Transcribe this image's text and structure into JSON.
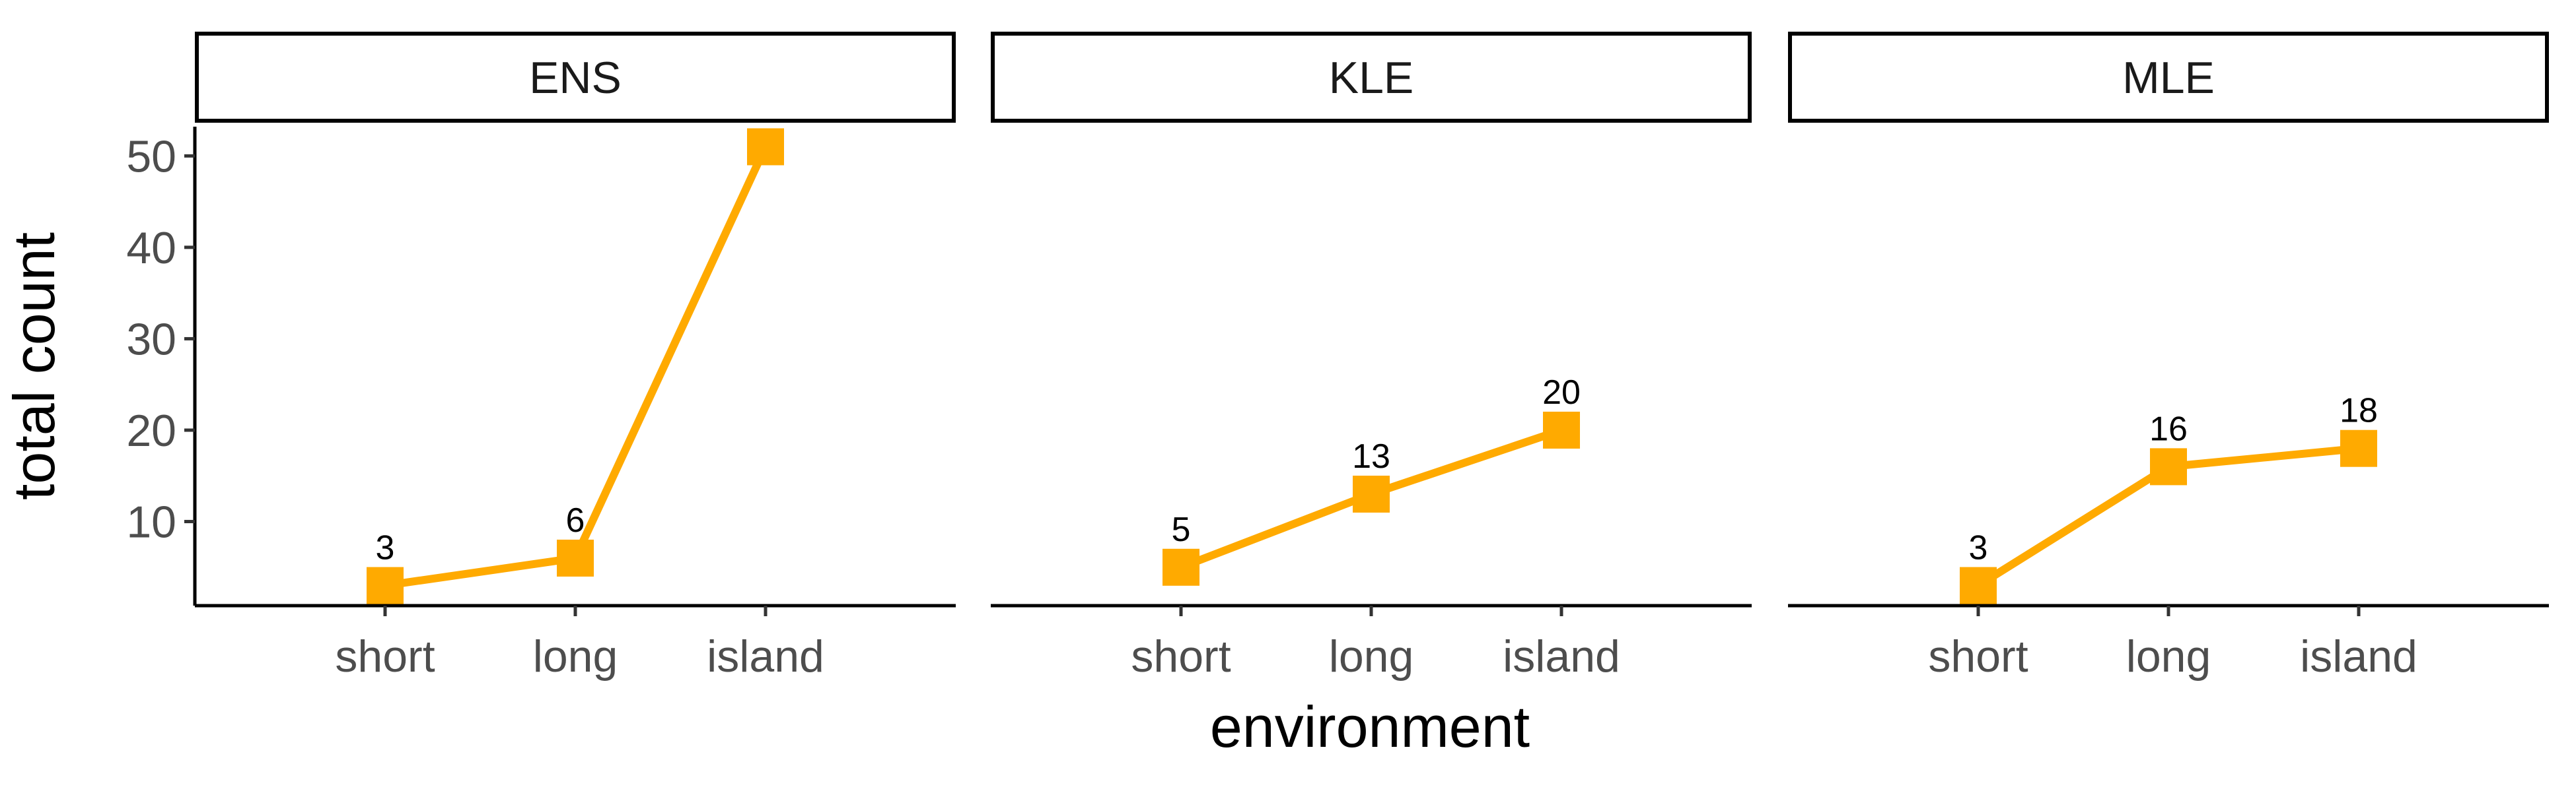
{
  "chart_data": {
    "type": "line",
    "xlabel": "environment",
    "ylabel": "total count",
    "categories": [
      "short",
      "long",
      "island"
    ],
    "yticks": [
      10,
      20,
      30,
      40,
      50
    ],
    "ylim": [
      0.8,
      53.2
    ],
    "color": "#FFAA00",
    "panels": [
      {
        "name": "ENS",
        "values": [
          3,
          6,
          51
        ],
        "labels": [
          "3",
          "6",
          ""
        ]
      },
      {
        "name": "KLE",
        "values": [
          5,
          13,
          20
        ],
        "labels": [
          "5",
          "13",
          "20"
        ]
      },
      {
        "name": "MLE",
        "values": [
          3,
          16,
          18
        ],
        "labels": [
          "3",
          "16",
          "18"
        ]
      }
    ],
    "grid": false,
    "legend": "none"
  }
}
